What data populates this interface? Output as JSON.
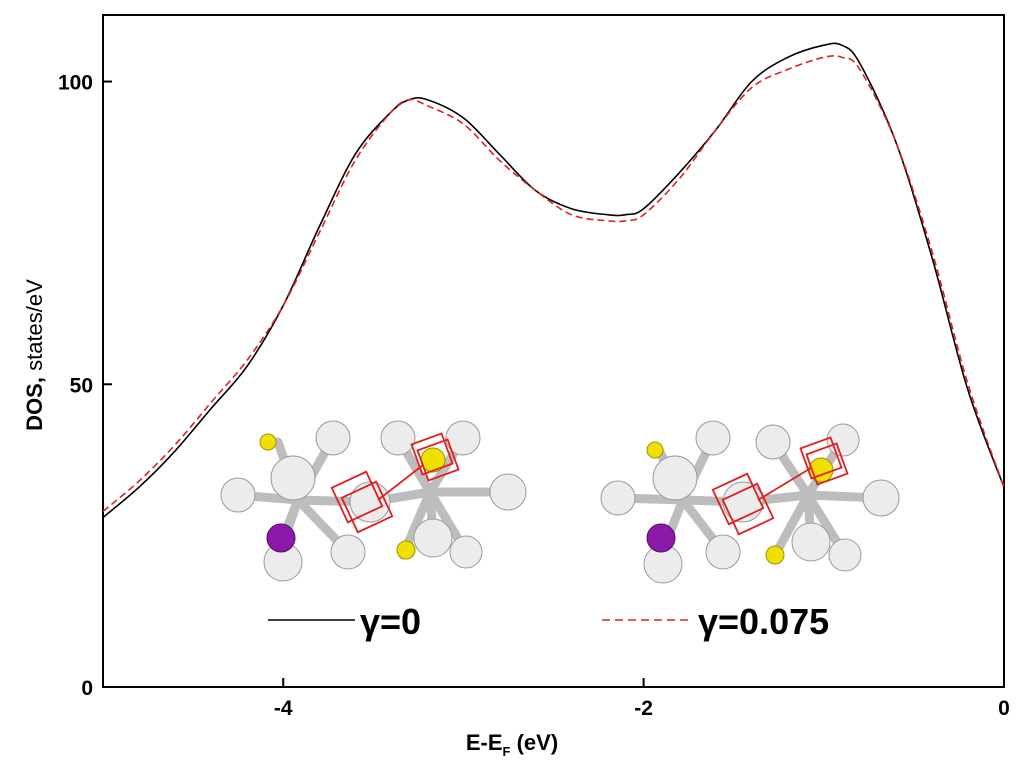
{
  "chart_data": {
    "type": "line",
    "xlabel": {
      "main": "E-E",
      "sub": "F",
      "unit": " (eV)"
    },
    "ylabel": {
      "main": "DOS,",
      "unit": " states/eV"
    },
    "xlim": [
      -5,
      0
    ],
    "ylim": [
      0,
      110
    ],
    "x_ticks": [
      -4,
      -2,
      0
    ],
    "x_tick_labels": [
      "-4",
      "-2",
      "0"
    ],
    "y_ticks": [
      0,
      50,
      100
    ],
    "y_tick_labels": [
      "0",
      "50",
      "100"
    ],
    "grid": false,
    "legend_position": "bottom-center",
    "series": [
      {
        "name": "γ=0",
        "color": "#000000",
        "style": "solid",
        "x": [
          -5.0,
          -4.8,
          -4.6,
          -4.4,
          -4.2,
          -4.0,
          -3.8,
          -3.6,
          -3.4,
          -3.3,
          -3.2,
          -3.0,
          -2.8,
          -2.6,
          -2.4,
          -2.2,
          -2.1,
          -2.0,
          -1.8,
          -1.6,
          -1.4,
          -1.2,
          -1.0,
          -0.9,
          -0.8,
          -0.6,
          -0.4,
          -0.2,
          0.0
        ],
        "y": [
          28,
          33,
          39,
          46,
          53,
          63,
          76,
          88,
          95,
          97,
          97,
          94,
          88,
          82,
          79,
          78,
          78,
          79,
          85,
          92,
          100,
          104,
          106,
          106,
          103,
          90,
          71,
          49,
          33
        ]
      },
      {
        "name": "γ=0.075",
        "color": "#e02020",
        "style": "dashed",
        "x": [
          -5.0,
          -4.8,
          -4.6,
          -4.4,
          -4.2,
          -4.0,
          -3.8,
          -3.6,
          -3.4,
          -3.3,
          -3.2,
          -3.0,
          -2.8,
          -2.6,
          -2.4,
          -2.2,
          -2.1,
          -2.0,
          -1.8,
          -1.6,
          -1.4,
          -1.2,
          -1.0,
          -0.9,
          -0.8,
          -0.6,
          -0.4,
          -0.2,
          0.0
        ],
        "y": [
          29,
          34,
          40,
          47,
          54,
          63,
          75,
          87,
          95,
          97,
          96,
          93,
          87,
          82,
          78,
          77,
          77,
          78,
          84,
          92,
          99,
          102,
          104,
          104,
          102,
          90,
          72,
          50,
          33
        ]
      }
    ]
  },
  "insets": [
    {
      "caption": "structure-gamma-0"
    },
    {
      "caption": "structure-gamma-0.075"
    }
  ],
  "colors": {
    "atom": "#e6e6e6",
    "atom_dark": "#9a9a9a",
    "yellow_atom": "#f0e000",
    "purple_atom": "#8a1aa8",
    "cell_box": "#e02020"
  }
}
